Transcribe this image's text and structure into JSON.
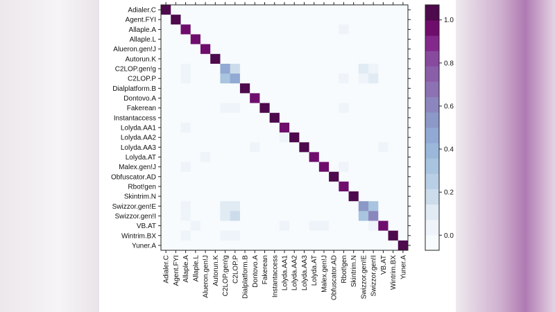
{
  "chart_data": {
    "type": "heatmap",
    "title": "",
    "xlabel": "",
    "ylabel": "",
    "labels": [
      "Adialer.C",
      "Agent.FYI",
      "Allaple.A",
      "Allaple.L",
      "Alueron.gen!J",
      "Autorun.K",
      "C2LOP.gen!g",
      "C2LOP.P",
      "Dialplatform.B",
      "Dontovo.A",
      "Fakerean",
      "Instantaccess",
      "Lolyda.AA1",
      "Lolyda.AA2",
      "Lolyda.AA3",
      "Lolyda.AT",
      "Malex.gen!J",
      "Obfuscator.AD",
      "Rbot!gen",
      "Skintrim.N",
      "Swizzor.gen!E",
      "Swizzor.gen!I",
      "VB.AT",
      "Wintrim.BX",
      "Yuner.A"
    ],
    "diagonal": [
      1.0,
      1.0,
      0.95,
      0.95,
      0.95,
      1.0,
      0.45,
      0.45,
      1.0,
      0.93,
      1.0,
      1.0,
      0.93,
      1.0,
      1.0,
      0.93,
      0.93,
      1.0,
      0.93,
      1.0,
      0.5,
      0.6,
      0.93,
      1.0,
      1.0
    ],
    "off_diagonal": [
      {
        "row": "Allaple.A",
        "col": "Rbot!gen",
        "value": 0.03
      },
      {
        "row": "C2LOP.gen!g",
        "col": "Allaple.A",
        "value": 0.03
      },
      {
        "row": "C2LOP.gen!g",
        "col": "C2LOP.P",
        "value": 0.2
      },
      {
        "row": "C2LOP.gen!g",
        "col": "Swizzor.gen!E",
        "value": 0.1
      },
      {
        "row": "C2LOP.gen!g",
        "col": "Swizzor.gen!I",
        "value": 0.05
      },
      {
        "row": "C2LOP.P",
        "col": "Allaple.A",
        "value": 0.03
      },
      {
        "row": "C2LOP.P",
        "col": "C2LOP.gen!g",
        "value": 0.3
      },
      {
        "row": "C2LOP.P",
        "col": "Rbot!gen",
        "value": 0.03
      },
      {
        "row": "C2LOP.P",
        "col": "Swizzor.gen!E",
        "value": 0.05
      },
      {
        "row": "C2LOP.P",
        "col": "Swizzor.gen!I",
        "value": 0.1
      },
      {
        "row": "Fakerean",
        "col": "C2LOP.gen!g",
        "value": 0.04
      },
      {
        "row": "Fakerean",
        "col": "C2LOP.P",
        "value": 0.04
      },
      {
        "row": "Fakerean",
        "col": "Rbot!gen",
        "value": 0.04
      },
      {
        "row": "Lolyda.AA1",
        "col": "Allaple.A",
        "value": 0.04
      },
      {
        "row": "Lolyda.AA2",
        "col": "Lolyda.AA1",
        "value": 0.03
      },
      {
        "row": "Lolyda.AA3",
        "col": "Dontovo.A",
        "value": 0.04
      },
      {
        "row": "Lolyda.AA3",
        "col": "VB.AT",
        "value": 0.04
      },
      {
        "row": "Lolyda.AT",
        "col": "Alueron.gen!J",
        "value": 0.03
      },
      {
        "row": "Malex.gen!J",
        "col": "Allaple.A",
        "value": 0.04
      },
      {
        "row": "Malex.gen!J",
        "col": "Rbot!gen",
        "value": 0.03
      },
      {
        "row": "Swizzor.gen!E",
        "col": "Allaple.A",
        "value": 0.03
      },
      {
        "row": "Swizzor.gen!E",
        "col": "C2LOP.gen!g",
        "value": 0.08
      },
      {
        "row": "Swizzor.gen!E",
        "col": "C2LOP.P",
        "value": 0.08
      },
      {
        "row": "Swizzor.gen!E",
        "col": "Swizzor.gen!I",
        "value": 0.3
      },
      {
        "row": "Swizzor.gen!I",
        "col": "Allaple.A",
        "value": 0.03
      },
      {
        "row": "Swizzor.gen!I",
        "col": "C2LOP.gen!g",
        "value": 0.08
      },
      {
        "row": "Swizzor.gen!I",
        "col": "C2LOP.P",
        "value": 0.15
      },
      {
        "row": "Swizzor.gen!I",
        "col": "Swizzor.gen!E",
        "value": 0.3
      },
      {
        "row": "VB.AT",
        "col": "Allaple.L",
        "value": 0.04
      },
      {
        "row": "VB.AT",
        "col": "Lolyda.AA1",
        "value": 0.03
      },
      {
        "row": "VB.AT",
        "col": "Lolyda.AT",
        "value": 0.04
      },
      {
        "row": "VB.AT",
        "col": "Malex.gen!J",
        "value": 0.04
      },
      {
        "row": "VB.AT",
        "col": "Swizzor.gen!I",
        "value": 0.02
      },
      {
        "row": "Wintrim.BX",
        "col": "Allaple.A",
        "value": 0.04
      },
      {
        "row": "Wintrim.BX",
        "col": "C2LOP.gen!g",
        "value": 0.04
      },
      {
        "row": "Wintrim.BX",
        "col": "C2LOP.P",
        "value": 0.04
      }
    ],
    "colorbar": {
      "range": [
        -0.07,
        1.07
      ],
      "ticks": [
        "0.0",
        "0.2",
        "0.4",
        "0.6",
        "0.8",
        "1.0"
      ],
      "tick_values": [
        0,
        0.2,
        0.4,
        0.6,
        0.8,
        1.0
      ],
      "colors": [
        "#f7fbfd",
        "#eef4f9",
        "#e1ebf4",
        "#ccdceb",
        "#b9cfe6",
        "#a8c4df",
        "#9bb8da",
        "#91a9d3",
        "#8c98c8",
        "#8c86be",
        "#8d72b3",
        "#8b5ea9",
        "#884a9e",
        "#82298b",
        "#6f0d6d",
        "#4d0a4c"
      ]
    },
    "grid": false,
    "legend": "right"
  }
}
